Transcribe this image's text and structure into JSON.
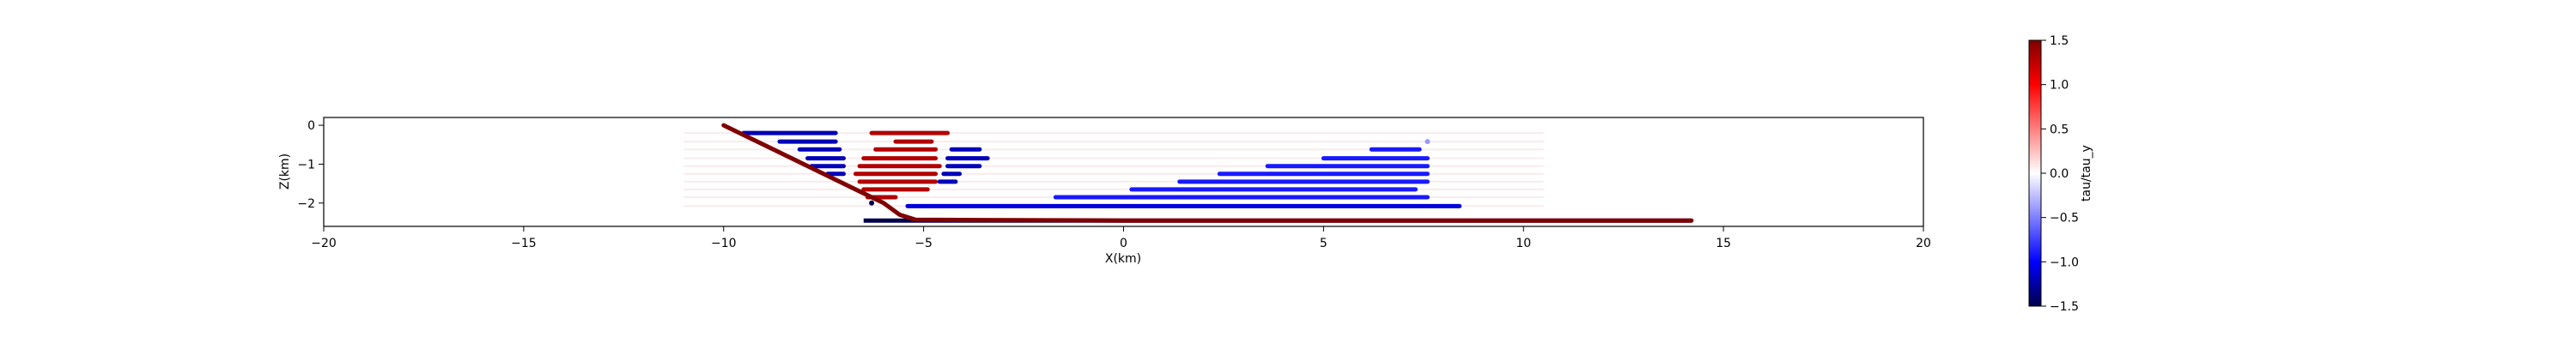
{
  "chart_data": {
    "type": "scatter",
    "title": "",
    "xlabel": "X(km)",
    "ylabel": "Z(km)",
    "xlim": [
      -20,
      20
    ],
    "ylim": [
      -2.6,
      0.2
    ],
    "xticks": [
      -20,
      -15,
      -10,
      -5,
      0,
      5,
      10,
      15,
      20
    ],
    "yticks": [
      0,
      -1,
      -2
    ],
    "grid": false,
    "colorbar": {
      "label": "tau/tau_y",
      "range": [
        -1.5,
        1.5
      ],
      "ticks": [
        1.5,
        1.0,
        0.5,
        0.0,
        -0.5,
        -1.0,
        -1.5
      ],
      "colormap": "seismic",
      "colors": {
        "min": "#00004c",
        "low": "#0000ff",
        "mid": "#ffffff",
        "high": "#ff0000",
        "max": "#7f0000"
      }
    },
    "fault": {
      "value": 1.5,
      "x": [
        -10.0,
        -6.0,
        -5.6,
        -5.2,
        0,
        5,
        10,
        14.2
      ],
      "z": [
        0.0,
        -2.0,
        -2.3,
        -2.43,
        -2.45,
        -2.45,
        -2.45,
        -2.45
      ]
    },
    "bottom_band": {
      "z": -2.45,
      "x0": -6.5,
      "x1": 14.2,
      "value": -1.5
    },
    "rows": [
      {
        "z": -0.2,
        "segments": [
          {
            "x0": -9.5,
            "x1": -7.2,
            "value": -1.2
          },
          {
            "x0": -6.3,
            "x1": -4.4,
            "value": 1.3
          }
        ]
      },
      {
        "z": -0.42,
        "segments": [
          {
            "x0": -8.6,
            "x1": -7.2,
            "value": -1.2
          },
          {
            "x0": -5.7,
            "x1": -4.8,
            "value": 1.3
          }
        ]
      },
      {
        "z": -0.62,
        "segments": [
          {
            "x0": -8.1,
            "x1": -7.1,
            "value": -1.2
          },
          {
            "x0": -6.2,
            "x1": -4.7,
            "value": 1.3
          },
          {
            "x0": -4.3,
            "x1": -3.6,
            "value": -1.2
          },
          {
            "x0": 6.2,
            "x1": 7.4,
            "value": -0.9
          }
        ]
      },
      {
        "z": -0.85,
        "segments": [
          {
            "x0": -7.9,
            "x1": -7.0,
            "value": -1.2
          },
          {
            "x0": -6.5,
            "x1": -4.7,
            "value": 1.3
          },
          {
            "x0": -4.4,
            "x1": -3.4,
            "value": -1.2
          },
          {
            "x0": 5.0,
            "x1": 7.6,
            "value": -0.9
          }
        ]
      },
      {
        "z": -1.05,
        "segments": [
          {
            "x0": -7.8,
            "x1": -7.0,
            "value": -1.2
          },
          {
            "x0": -6.6,
            "x1": -4.6,
            "value": 1.3
          },
          {
            "x0": -4.4,
            "x1": -3.6,
            "value": -1.2
          },
          {
            "x0": 3.6,
            "x1": 7.6,
            "value": -0.9
          }
        ]
      },
      {
        "z": -1.25,
        "segments": [
          {
            "x0": -7.4,
            "x1": -7.0,
            "value": -1.2
          },
          {
            "x0": -6.7,
            "x1": -4.7,
            "value": 1.3
          },
          {
            "x0": -4.5,
            "x1": -4.1,
            "value": -1.2
          },
          {
            "x0": 2.4,
            "x1": 7.6,
            "value": -0.9
          }
        ]
      },
      {
        "z": -1.45,
        "segments": [
          {
            "x0": -6.6,
            "x1": -4.7,
            "value": 1.3
          },
          {
            "x0": -4.6,
            "x1": -4.2,
            "value": -1.2
          },
          {
            "x0": 1.4,
            "x1": 7.6,
            "value": -0.9
          }
        ]
      },
      {
        "z": -1.65,
        "segments": [
          {
            "x0": -6.5,
            "x1": -4.9,
            "value": 1.3
          },
          {
            "x0": 0.2,
            "x1": 7.3,
            "value": -0.9
          }
        ]
      },
      {
        "z": -1.85,
        "segments": [
          {
            "x0": -6.4,
            "x1": -5.7,
            "value": 1.3
          },
          {
            "x0": -1.7,
            "x1": 7.6,
            "value": -0.9
          }
        ]
      },
      {
        "z": -2.08,
        "segments": [
          {
            "x0": -5.4,
            "x1": 8.4,
            "value": -1.1
          }
        ]
      }
    ],
    "isolated_points": [
      {
        "x": 7.6,
        "z": -0.42,
        "value": -0.4
      },
      {
        "x": -6.3,
        "z": -2.0,
        "value": -1.5
      }
    ]
  }
}
